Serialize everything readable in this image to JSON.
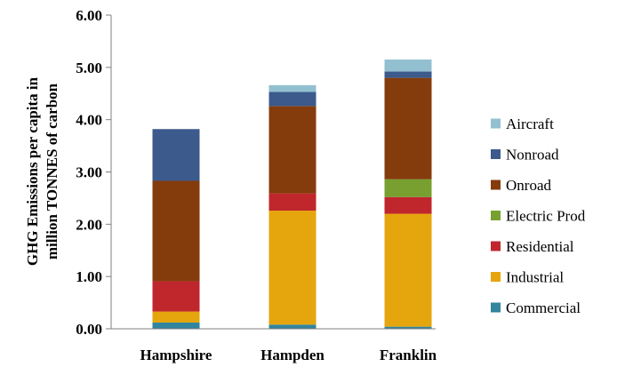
{
  "chart_data": {
    "type": "bar",
    "stacked": true,
    "title": "",
    "xlabel": "",
    "ylabel_lines": [
      "GHG Emissions per capita in",
      "million TONNES of carbon"
    ],
    "ylim": [
      0,
      6
    ],
    "yticks": [
      "0.00",
      "1.00",
      "2.00",
      "3.00",
      "4.00",
      "5.00",
      "6.00"
    ],
    "grid": false,
    "legend_position": "right",
    "categories": [
      "Hampshire",
      "Hampden",
      "Franklin"
    ],
    "series": [
      {
        "name": "Commercial",
        "color": "#31859c",
        "values": [
          0.12,
          0.08,
          0.04
        ]
      },
      {
        "name": "Industrial",
        "color": "#e5a50d",
        "values": [
          0.21,
          2.18,
          2.16
        ]
      },
      {
        "name": "Residential",
        "color": "#c0272d",
        "values": [
          0.58,
          0.33,
          0.32
        ]
      },
      {
        "name": "Electric Prod",
        "color": "#77a030",
        "values": [
          0.0,
          0.0,
          0.34
        ]
      },
      {
        "name": "Onroad",
        "color": "#843c0c",
        "values": [
          1.92,
          1.67,
          1.94
        ]
      },
      {
        "name": "Nonroad",
        "color": "#3c5a8c",
        "values": [
          0.99,
          0.27,
          0.12
        ]
      },
      {
        "name": "Aircraft",
        "color": "#93c0d0",
        "values": [
          0.0,
          0.13,
          0.23
        ]
      }
    ]
  }
}
